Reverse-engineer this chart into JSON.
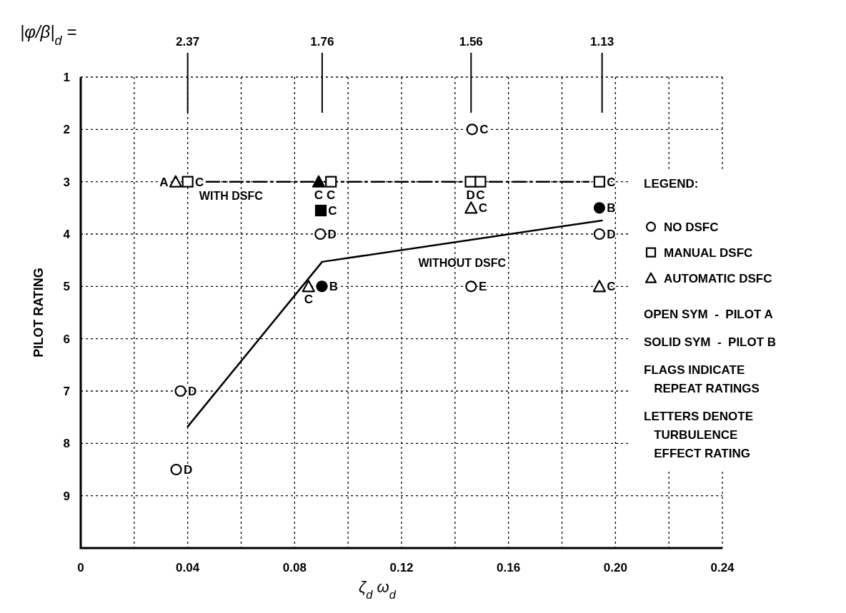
{
  "chart_data": {
    "type": "scatter",
    "xlabel": "ζ$_{d}$ω$_{d}$",
    "ylabel": "PILOT RATING",
    "xlim": [
      0,
      0.24
    ],
    "xticks": [
      0,
      {
        "value": 0.02,
        "label": null
      },
      0.04,
      {
        "value": 0.06,
        "label": null
      },
      0.08,
      {
        "value": 0.1,
        "label": null
      },
      0.12,
      {
        "value": 0.14,
        "label": null
      },
      0.16,
      {
        "value": 0.18,
        "label": null
      },
      {
        "value": 0.2,
        "label": "0.20"
      },
      {
        "value": 0.22,
        "label": null
      },
      0.24
    ],
    "ylim": [
      10,
      1
    ],
    "yticks": [
      1,
      2,
      3,
      4,
      5,
      6,
      7,
      8,
      9
    ],
    "grid": true,
    "legend": "right",
    "legend_title": "LEGEND:",
    "series": [
      {
        "name": "WITH DSFC",
        "type": "line",
        "color": "#000000",
        "line_style": "dashed",
        "x": [
          0.047,
          0.19
        ],
        "values": [
          3,
          3
        ]
      },
      {
        "name": "WITHOUT DSFC",
        "type": "line",
        "color": "#000000",
        "line_style": "solid",
        "x": [
          0.04,
          0.0903,
          0.195
        ],
        "values": [
          7.68,
          4.53,
          3.74
        ]
      },
      {
        "name": "NO DSFC",
        "color": "#ffffff",
        "marker": "circle",
        "x": [
          0.0896,
          0.1464,
          0.146,
          0.194,
          0.0373,
          0.0357
        ],
        "values": [
          4,
          2,
          5,
          4,
          7,
          8.5
        ],
        "value_labels": [
          "D",
          "C",
          "E",
          "D",
          "D",
          "D"
        ]
      },
      {
        "name": "MANUAL DSFC",
        "color": "#ffffff",
        "marker": "square",
        "x": [
          0.04,
          0.0936,
          0.1458,
          0.1495,
          0.194
        ],
        "values": [
          3,
          3,
          3,
          3,
          3
        ],
        "value_labels": [
          "C",
          "C",
          "D",
          "C",
          "C"
        ]
      },
      {
        "name": "AUTOMATIC DSFC",
        "color": "#ffffff",
        "marker": "triangle",
        "x": [
          0.0355,
          0.0852,
          0.146,
          0.194
        ],
        "values": [
          3,
          5,
          3.5,
          5
        ],
        "value_labels": [
          "A",
          "C",
          "C",
          "C"
        ]
      },
      {
        "color": "#000000",
        "marker": "circle",
        "x": [
          0.0902,
          0.194
        ],
        "values": [
          5,
          3.5
        ],
        "value_labels": [
          "B",
          "B"
        ]
      },
      {
        "color": "#000000",
        "marker": "square",
        "x": [
          0.0898
        ],
        "values": [
          3.55
        ],
        "value_labels": [
          "C"
        ]
      },
      {
        "color": "#000000",
        "marker": "triangle",
        "x": [
          0.089
        ],
        "values": [
          3
        ],
        "value_labels": [
          "C"
        ]
      }
    ],
    "annotations": [
      "|φ/β|$_{d}$ =",
      "OPEN SYM  -  PILOT A",
      "SOLID SYM  -  PILOT B",
      "FLAGS INDICATE\n   REPEAT RATINGS",
      "LETTERS DENOTE\n   TURBULENCE\n   EFFECT RATING",
      {
        "text": "2.37",
        "x": 0.04
      },
      {
        "text": "1.76",
        "x": 0.0903
      },
      {
        "text": "1.56",
        "x": 0.146
      },
      {
        "text": "1.13",
        "x": 0.195
      }
    ]
  }
}
